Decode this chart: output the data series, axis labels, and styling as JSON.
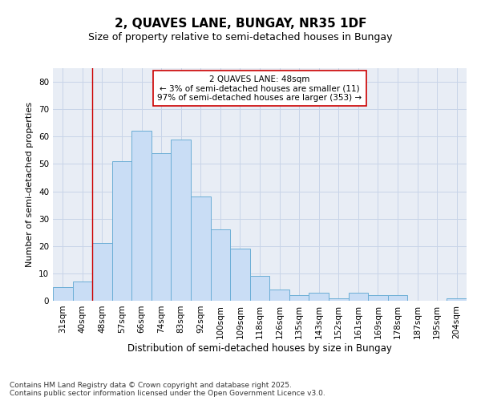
{
  "title1": "2, QUAVES LANE, BUNGAY, NR35 1DF",
  "title2": "Size of property relative to semi-detached houses in Bungay",
  "xlabel": "Distribution of semi-detached houses by size in Bungay",
  "ylabel": "Number of semi-detached properties",
  "categories": [
    "31sqm",
    "40sqm",
    "48sqm",
    "57sqm",
    "66sqm",
    "74sqm",
    "83sqm",
    "92sqm",
    "100sqm",
    "109sqm",
    "118sqm",
    "126sqm",
    "135sqm",
    "143sqm",
    "152sqm",
    "161sqm",
    "169sqm",
    "178sqm",
    "187sqm",
    "195sqm",
    "204sqm"
  ],
  "values": [
    5,
    7,
    21,
    51,
    62,
    54,
    59,
    38,
    26,
    19,
    9,
    4,
    2,
    3,
    1,
    3,
    2,
    2,
    0,
    0,
    1
  ],
  "bar_color": "#c9ddf5",
  "bar_edge_color": "#6baed6",
  "vline_x": 2,
  "vline_color": "#cc0000",
  "annotation_text": "2 QUAVES LANE: 48sqm\n← 3% of semi-detached houses are smaller (11)\n97% of semi-detached houses are larger (353) →",
  "annotation_box_color": "#ffffff",
  "annotation_box_edge": "#cc0000",
  "ylim": [
    0,
    85
  ],
  "yticks": [
    0,
    10,
    20,
    30,
    40,
    50,
    60,
    70,
    80
  ],
  "grid_color": "#c8d4e8",
  "bg_color": "#e8edf5",
  "footer": "Contains HM Land Registry data © Crown copyright and database right 2025.\nContains public sector information licensed under the Open Government Licence v3.0.",
  "title1_fontsize": 11,
  "title2_fontsize": 9,
  "xlabel_fontsize": 8.5,
  "ylabel_fontsize": 8,
  "tick_fontsize": 7.5,
  "annotation_fontsize": 7.5,
  "footer_fontsize": 6.5
}
